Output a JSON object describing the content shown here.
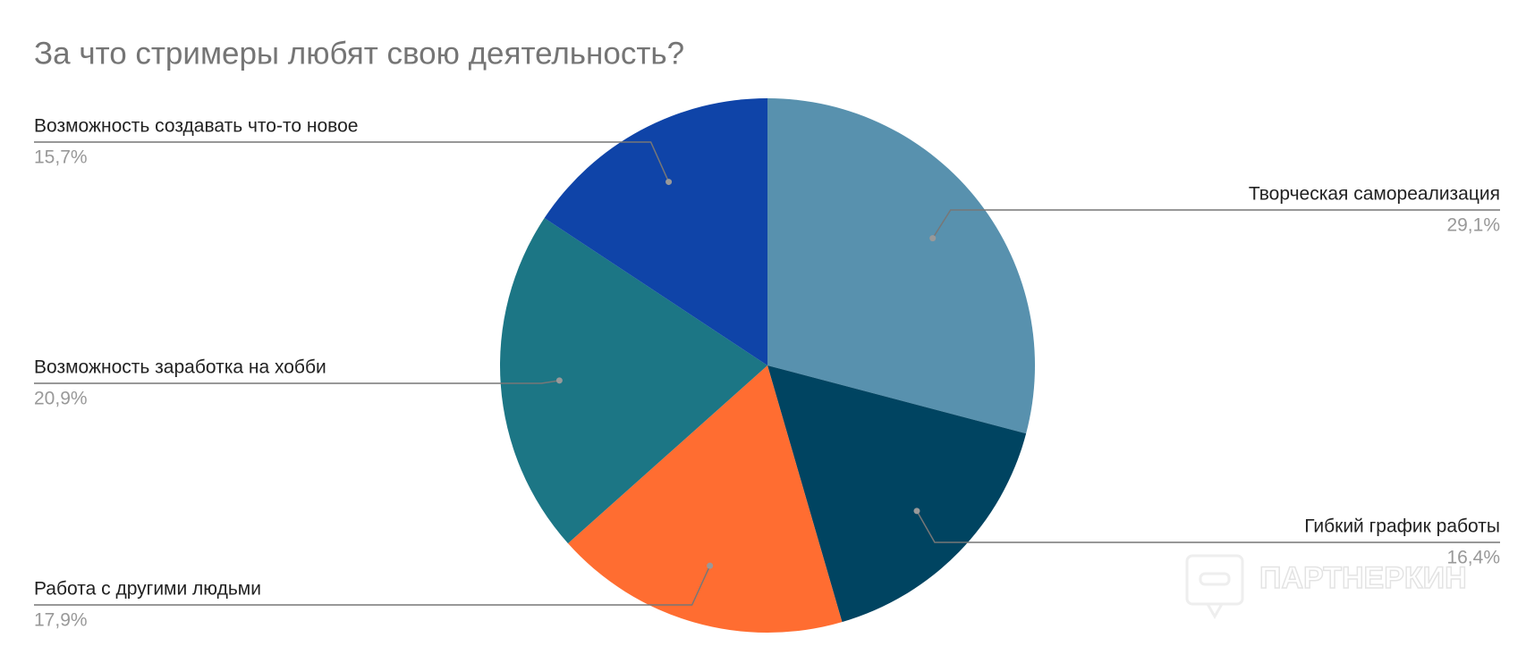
{
  "chart_data": {
    "type": "pie",
    "title": "За что стримеры любят свою деятельность?",
    "categories": [
      "Творческая самореализация",
      "Гибкий график работы",
      "Работа с другими людьми",
      "Возможность заработка на хобби",
      "Возможность создавать что-то новое"
    ],
    "values": [
      29.1,
      16.4,
      17.9,
      20.9,
      15.7
    ],
    "value_labels": [
      "29,1%",
      "16,4%",
      "17,9%",
      "20,9%",
      "15,7%"
    ],
    "colors": [
      "#5891ae",
      "#004461",
      "#ff6d31",
      "#1c7685",
      "#0f44a8"
    ],
    "watermark": "ПАРТНЕРКИН"
  }
}
